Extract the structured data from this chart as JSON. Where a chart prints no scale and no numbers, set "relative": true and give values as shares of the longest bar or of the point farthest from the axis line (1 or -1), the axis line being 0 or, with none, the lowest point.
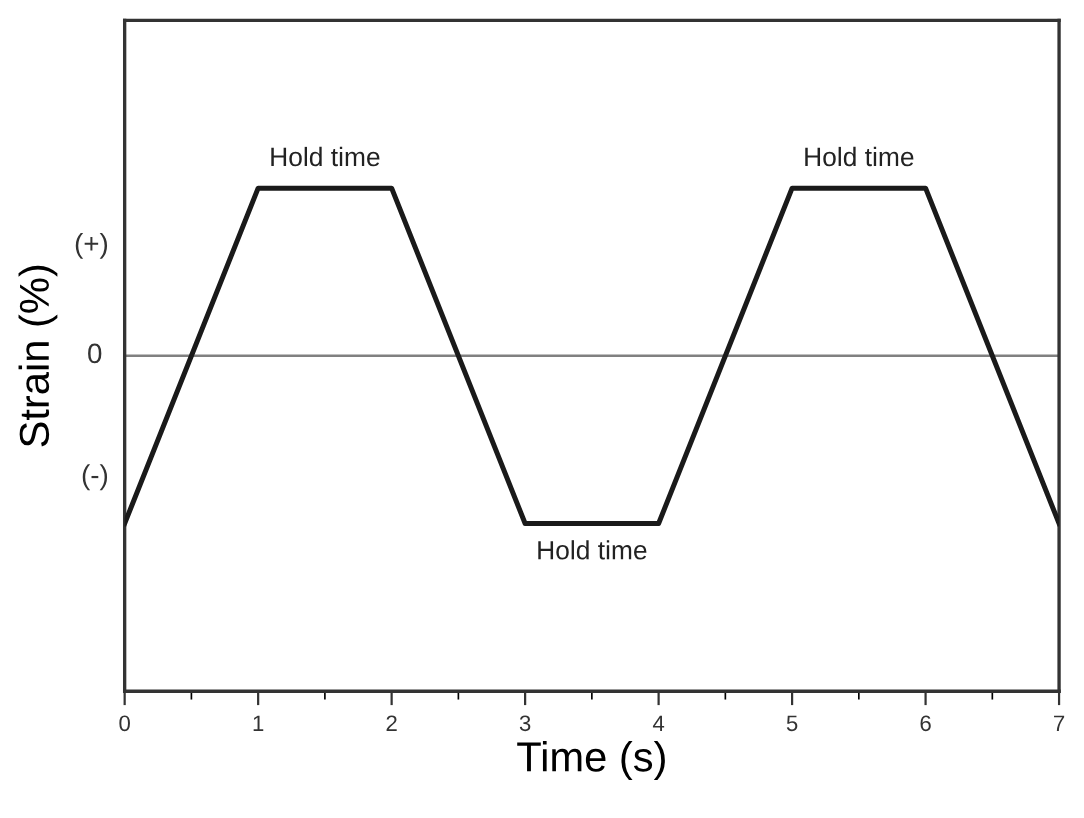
{
  "chart_data": {
    "type": "line",
    "xlabel": "Time (s)",
    "ylabel": "Strain (%)",
    "x": [
      0,
      1,
      2,
      3,
      4,
      5,
      6,
      7
    ],
    "series": [
      {
        "color": "#1a1a1a",
        "values": [
          -1,
          1,
          1,
          -1,
          -1,
          1,
          1,
          -1
        ]
      }
    ],
    "xlim": [
      0,
      7
    ],
    "xticks": [
      0,
      1,
      2,
      3,
      4,
      5,
      6,
      7
    ],
    "relative": true,
    "ref_lines": [
      {
        "axis": "y",
        "value": 0,
        "label": "0",
        "color": "#808080"
      }
    ],
    "annotations": [
      {
        "text": "Hold time",
        "x": 1.5,
        "y": 1
      },
      {
        "text": "Hold time",
        "x": 3.5,
        "y": -1
      },
      {
        "text": "Hold time",
        "x": 5.5,
        "y": 1
      },
      "(+)",
      "(-)"
    ],
    "grid": false,
    "legend": false,
    "marker": "none",
    "line_style": "solid"
  }
}
